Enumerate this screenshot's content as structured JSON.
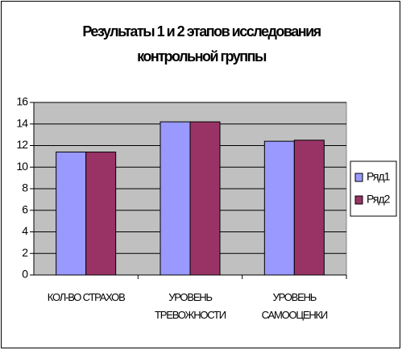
{
  "chart_data": {
    "type": "bar",
    "title": "Результаты 1 и 2 этапов исследования контрольной группы",
    "categories": [
      "КОЛ-ВО СТРАХОВ",
      "УРОВЕНЬ ТРЕВОЖНОСТИ",
      "УРОВЕНЬ САМООЦЕНКИ"
    ],
    "series": [
      {
        "name": "Ряд1",
        "color": "#9999ff",
        "values": [
          11.4,
          14.2,
          12.4
        ]
      },
      {
        "name": "Ряд2",
        "color": "#993366",
        "values": [
          11.4,
          14.2,
          12.5
        ]
      }
    ],
    "ylim": [
      0,
      16
    ],
    "yticks": [
      0,
      2,
      4,
      6,
      8,
      10,
      12,
      14,
      16
    ],
    "grid": true,
    "plot_background": "#c0c0c0",
    "legend": "right"
  }
}
